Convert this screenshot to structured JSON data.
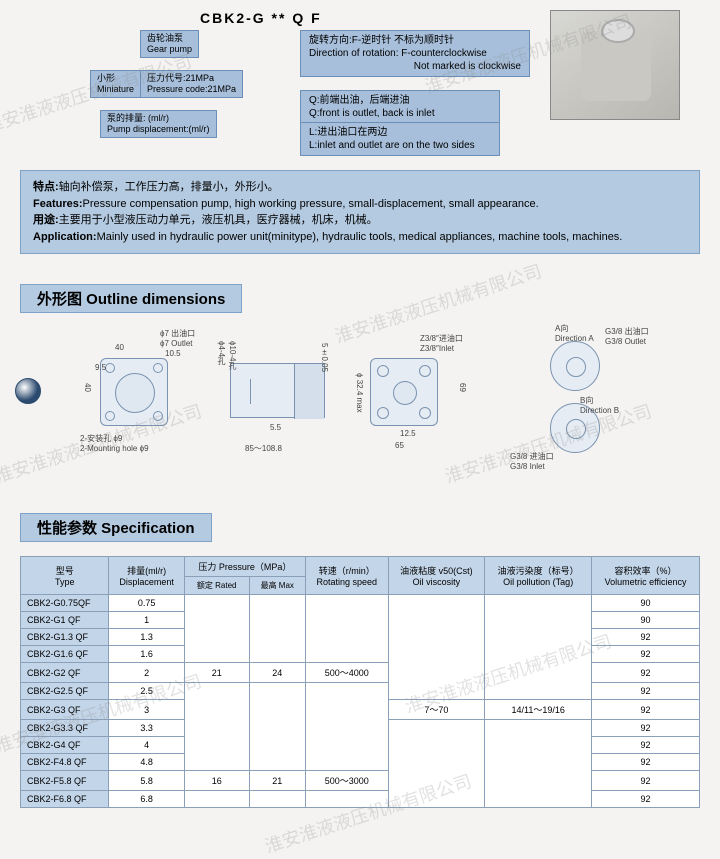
{
  "model_code": "CBK2-G ** Q  F",
  "labels": {
    "gear_pump": {
      "cn": "齿轮油泵",
      "en": "Gear pump"
    },
    "miniature": {
      "cn": "小形",
      "en": "Miniature"
    },
    "pressure_code": {
      "cn": "压力代号:21MPa",
      "en": "Pressure code:21MPa"
    },
    "displacement": {
      "cn": "泵的排量: (ml/r)",
      "en": "Pump displacement:(ml/r)"
    },
    "rotation": {
      "cn": "旋转方向:F-逆时针  不标为顺时针",
      "en1": "Direction of rotation:  F-counterclockwise",
      "en2": "Not marked is clockwise"
    },
    "q_port": {
      "cn": "Q:前端出油，后端进油",
      "en": "Q:front is outlet,  back is inlet"
    },
    "l_port": {
      "cn": "L:进出油口在两边",
      "en": "L:inlet and outlet are on the two sides"
    }
  },
  "features": {
    "features_cn_label": "特点:",
    "features_cn": "轴向补偿泵，工作压力高，排量小，外形小。",
    "features_en_label": "Features:",
    "features_en": "Pressure compensation pump, high working pressure, small-displacement, small appearance.",
    "app_cn_label": "用途:",
    "app_cn": "主要用于小型液压动力单元，液压机具，医疗器械，机床，机械。",
    "app_en_label": "Application:",
    "app_en": "Mainly used in hydraulic power unit(minitype), hydraulic tools, medical appliances, machine tools, machines."
  },
  "sections": {
    "outline": "外形图 Outline dimensions",
    "spec": "性能参数 Specification"
  },
  "diagram_labels": {
    "outlet7": "ϕ7 出油口\nϕ7 Outlet",
    "mount_hole": "2-安装孔 ϕ9\n2-Mounting hole ϕ9",
    "dim40": "40",
    "dim40v": "40",
    "dim105": "10.5",
    "dim95": "9.5",
    "dim_phi4": "ϕ4-4孔",
    "dim_phi10": "ϕ10-4孔",
    "dim5005": "5±0.05",
    "dim55": "5.5",
    "dim_range": "85～108.8",
    "z38_inlet": "Z3/8″进油口\nZ3/8″Inlet",
    "dim324": "ϕ 32.4 max",
    "dim125": "12.5",
    "dim65": "65",
    "dim69": "69",
    "dir_a": "A向\nDirection A",
    "g38_out": "G3/8 出油口\nG3/8 Outlet",
    "dir_b": "B向\nDirection B",
    "g38_in": "G3/8 进油口\nG3/8 Inlet"
  },
  "spec_headers": {
    "type": {
      "cn": "型号",
      "en": "Type"
    },
    "displacement": {
      "cn": "排量(ml/r)",
      "en": "Displacement"
    },
    "pressure": {
      "cn": "压力 Pressure（MPa）",
      "rated_cn": "额定 Rated",
      "max_cn": "最高 Max"
    },
    "speed": {
      "cn": "转速（r/min）",
      "en": "Rotating speed"
    },
    "viscosity": {
      "cn": "油液粘度 v50(Cst)",
      "en": "Oil viscosity"
    },
    "pollution": {
      "cn": "油液污染度（标号）",
      "en": "Oil pollution   (Tag)"
    },
    "vol_eff": {
      "cn": "容积效率（%）",
      "en": "Volumetric efficiency"
    }
  },
  "spec_rows": [
    {
      "type": "CBK2-G0.75QF",
      "disp": "0.75",
      "eff": "90"
    },
    {
      "type": "CBK2-G1 QF",
      "disp": "1",
      "eff": "90"
    },
    {
      "type": "CBK2-G1.3 QF",
      "disp": "1.3",
      "eff": "92"
    },
    {
      "type": "CBK2-G1.6 QF",
      "disp": "1.6",
      "eff": "92"
    },
    {
      "type": "CBK2-G2 QF",
      "disp": "2",
      "eff": "92"
    },
    {
      "type": "CBK2-G2.5 QF",
      "disp": "2.5",
      "eff": "92"
    },
    {
      "type": "CBK2-G3 QF",
      "disp": "3",
      "eff": "92"
    },
    {
      "type": "CBK2-G3.3 QF",
      "disp": "3.3",
      "eff": "92"
    },
    {
      "type": "CBK2-G4 QF",
      "disp": "4",
      "eff": "92"
    },
    {
      "type": "CBK2-F4.8 QF",
      "disp": "4.8",
      "eff": "92"
    },
    {
      "type": "CBK2-F5.8 QF",
      "disp": "5.8",
      "eff": "92"
    },
    {
      "type": "CBK2-F6.8 QF",
      "disp": "6.8",
      "eff": "92"
    }
  ],
  "spec_merged": {
    "rated1": "21",
    "max1": "24",
    "speed1": "500～4000",
    "rated2": "16",
    "max2": "21",
    "speed2": "500～3000",
    "viscosity": "7～70",
    "pollution": "14/11～19/16"
  },
  "watermark_text": "淮安淮液液压机械有限公司"
}
